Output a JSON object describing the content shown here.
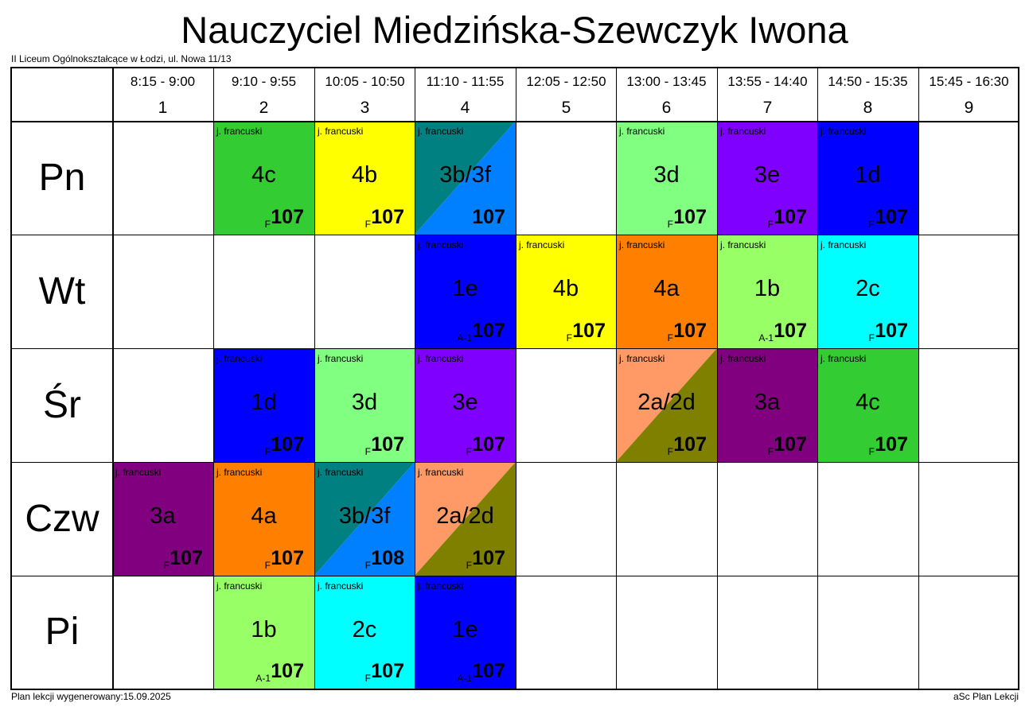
{
  "title": "Nauczyciel Miedzińska-Szewczyk Iwona",
  "school": "II Liceum Ogólnokształcące w Łodzi, ul. Nowa 11/13",
  "footer_left": "Plan lekcji wygenerowany:15.09.2025",
  "footer_right": "aSc Plan Lekcji",
  "periods": [
    {
      "time": "8:15 - 9:00",
      "num": "1"
    },
    {
      "time": "9:10 - 9:55",
      "num": "2"
    },
    {
      "time": "10:05 - 10:50",
      "num": "3"
    },
    {
      "time": "11:10 - 11:55",
      "num": "4"
    },
    {
      "time": "12:05 - 12:50",
      "num": "5"
    },
    {
      "time": "13:00 - 13:45",
      "num": "6"
    },
    {
      "time": "13:55 - 14:40",
      "num": "7"
    },
    {
      "time": "14:50 - 15:35",
      "num": "8"
    },
    {
      "time": "15:45 - 16:30",
      "num": "9"
    }
  ],
  "days": [
    "Pn",
    "Wt",
    "Śr",
    "Czw",
    "Pi"
  ],
  "lessons": [
    {
      "day": 0,
      "period": 1,
      "subject": "j. francuski",
      "class": "4c",
      "group": "F",
      "room": "107",
      "colors": [
        "#33cc33"
      ]
    },
    {
      "day": 0,
      "period": 2,
      "subject": "j. francuski",
      "class": "4b",
      "group": "F",
      "room": "107",
      "colors": [
        "#ffff00"
      ]
    },
    {
      "day": 0,
      "period": 3,
      "subject": "j. francuski",
      "class": "3b/3f",
      "group": "",
      "room": "107",
      "colors": [
        "#008080",
        "#0080ff"
      ]
    },
    {
      "day": 0,
      "period": 5,
      "subject": "j. francuski",
      "class": "3d",
      "group": "F",
      "room": "107",
      "colors": [
        "#80ff80"
      ]
    },
    {
      "day": 0,
      "period": 6,
      "subject": "j. francuski",
      "class": "3e",
      "group": "F",
      "room": "107",
      "colors": [
        "#8000ff"
      ]
    },
    {
      "day": 0,
      "period": 7,
      "subject": "j. francuski",
      "class": "1d",
      "group": "F",
      "room": "107",
      "colors": [
        "#0000ff"
      ]
    },
    {
      "day": 1,
      "period": 3,
      "subject": "j. francuski",
      "class": "1e",
      "group": "A-1",
      "room": "107",
      "colors": [
        "#0000ff"
      ]
    },
    {
      "day": 1,
      "period": 4,
      "subject": "j. francuski",
      "class": "4b",
      "group": "F",
      "room": "107",
      "colors": [
        "#ffff00"
      ]
    },
    {
      "day": 1,
      "period": 5,
      "subject": "j. francuski",
      "class": "4a",
      "group": "F",
      "room": "107",
      "colors": [
        "#ff8000"
      ]
    },
    {
      "day": 1,
      "period": 6,
      "subject": "j. francuski",
      "class": "1b",
      "group": "A-1",
      "room": "107",
      "colors": [
        "#99ff66"
      ]
    },
    {
      "day": 1,
      "period": 7,
      "subject": "j. francuski",
      "class": "2c",
      "group": "F",
      "room": "107",
      "colors": [
        "#00ffff"
      ]
    },
    {
      "day": 2,
      "period": 1,
      "subject": "j. francuski",
      "class": "1d",
      "group": "F",
      "room": "107",
      "colors": [
        "#0000ff"
      ]
    },
    {
      "day": 2,
      "period": 2,
      "subject": "j. francuski",
      "class": "3d",
      "group": "F",
      "room": "107",
      "colors": [
        "#80ff80"
      ]
    },
    {
      "day": 2,
      "period": 3,
      "subject": "j. francuski",
      "class": "3e",
      "group": "F",
      "room": "107",
      "colors": [
        "#8000ff"
      ]
    },
    {
      "day": 2,
      "period": 5,
      "subject": "j. francuski",
      "class": "2a/2d",
      "group": "F",
      "room": "107",
      "colors": [
        "#ff9966",
        "#808000"
      ]
    },
    {
      "day": 2,
      "period": 6,
      "subject": "j. francuski",
      "class": "3a",
      "group": "F",
      "room": "107",
      "colors": [
        "#800080"
      ]
    },
    {
      "day": 2,
      "period": 7,
      "subject": "j. francuski",
      "class": "4c",
      "group": "F",
      "room": "107",
      "colors": [
        "#33cc33"
      ]
    },
    {
      "day": 3,
      "period": 0,
      "subject": "j. francuski",
      "class": "3a",
      "group": "F",
      "room": "107",
      "colors": [
        "#800080"
      ]
    },
    {
      "day": 3,
      "period": 1,
      "subject": "j. francuski",
      "class": "4a",
      "group": "F",
      "room": "107",
      "colors": [
        "#ff8000"
      ]
    },
    {
      "day": 3,
      "period": 2,
      "subject": "j. francuski",
      "class": "3b/3f",
      "group": "F",
      "room": "108",
      "colors": [
        "#008080",
        "#0080ff"
      ]
    },
    {
      "day": 3,
      "period": 3,
      "subject": "j. francuski",
      "class": "2a/2d",
      "group": "F",
      "room": "107",
      "colors": [
        "#ff9966",
        "#808000"
      ]
    },
    {
      "day": 4,
      "period": 1,
      "subject": "j. francuski",
      "class": "1b",
      "group": "A-1",
      "room": "107",
      "colors": [
        "#99ff66"
      ]
    },
    {
      "day": 4,
      "period": 2,
      "subject": "j. francuski",
      "class": "2c",
      "group": "F",
      "room": "107",
      "colors": [
        "#00ffff"
      ]
    },
    {
      "day": 4,
      "period": 3,
      "subject": "j. francuski",
      "class": "1e",
      "group": "A-1",
      "room": "107",
      "colors": [
        "#0000ff"
      ]
    }
  ]
}
